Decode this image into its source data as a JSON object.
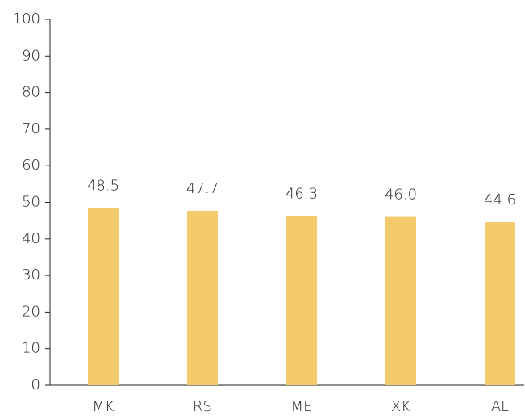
{
  "chart_data": {
    "type": "bar",
    "categories": [
      "MK",
      "RS",
      "ME",
      "XK",
      "AL"
    ],
    "values": [
      48.5,
      47.7,
      46.3,
      46.0,
      44.6
    ],
    "value_labels": [
      "48.5",
      "47.7",
      "46.3",
      "46.0",
      "44.6"
    ],
    "color": "#f2c96b",
    "ylim": [
      0,
      100
    ],
    "yticks": [
      0,
      10,
      20,
      30,
      40,
      50,
      60,
      70,
      80,
      90,
      100
    ],
    "grid": false
  }
}
